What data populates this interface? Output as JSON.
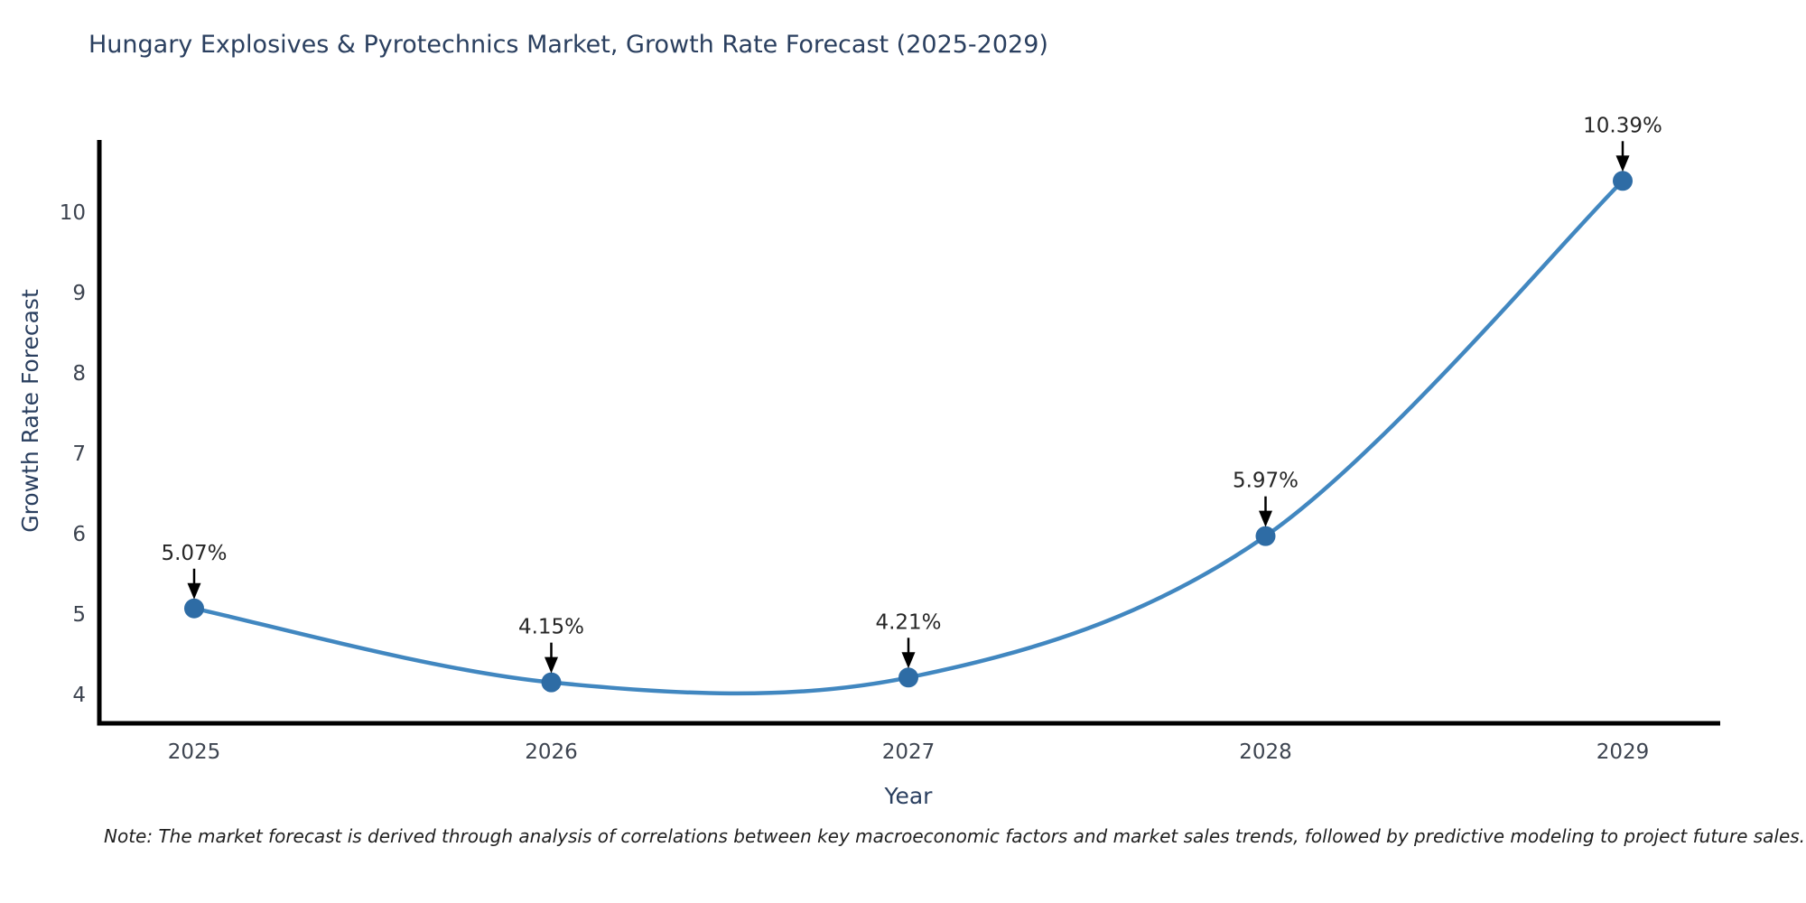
{
  "title": "Hungary Explosives & Pyrotechnics Market, Growth Rate Forecast (2025-2029)",
  "note": "Note: The market forecast is derived through analysis of correlations between key macroeconomic factors and market sales trends, followed by predictive modeling to project future sales.",
  "chart_data": {
    "type": "line",
    "title": "Hungary Explosives & Pyrotechnics Market, Growth Rate Forecast (2025-2029)",
    "xlabel": "Year",
    "ylabel": "Growth Rate Forecast",
    "x": [
      2025,
      2026,
      2027,
      2028,
      2029
    ],
    "series": [
      {
        "name": "Growth Rate Forecast",
        "values": [
          5.07,
          4.15,
          4.21,
          5.97,
          10.39
        ]
      }
    ],
    "point_labels": [
      "5.07%",
      "4.15%",
      "4.21%",
      "5.97%",
      "10.39%"
    ],
    "x_ticks": [
      "2025",
      "2026",
      "2027",
      "2028",
      "2029"
    ],
    "y_ticks": [
      4,
      5,
      6,
      7,
      8,
      9,
      10
    ],
    "xlim": [
      2024.73,
      2029.27
    ],
    "ylim": [
      3.6,
      10.9
    ],
    "grid": false,
    "legend": false,
    "smooth": true,
    "colors": {
      "line": "#4187c0",
      "marker": "#2e6ca5",
      "annotation_text": "#262626",
      "arrow": "#000000",
      "axis": "#000000",
      "tick_label": "#3d4450",
      "axis_label": "#2a3f5f",
      "title": "#2a3f5f",
      "background": "#ffffff"
    }
  }
}
